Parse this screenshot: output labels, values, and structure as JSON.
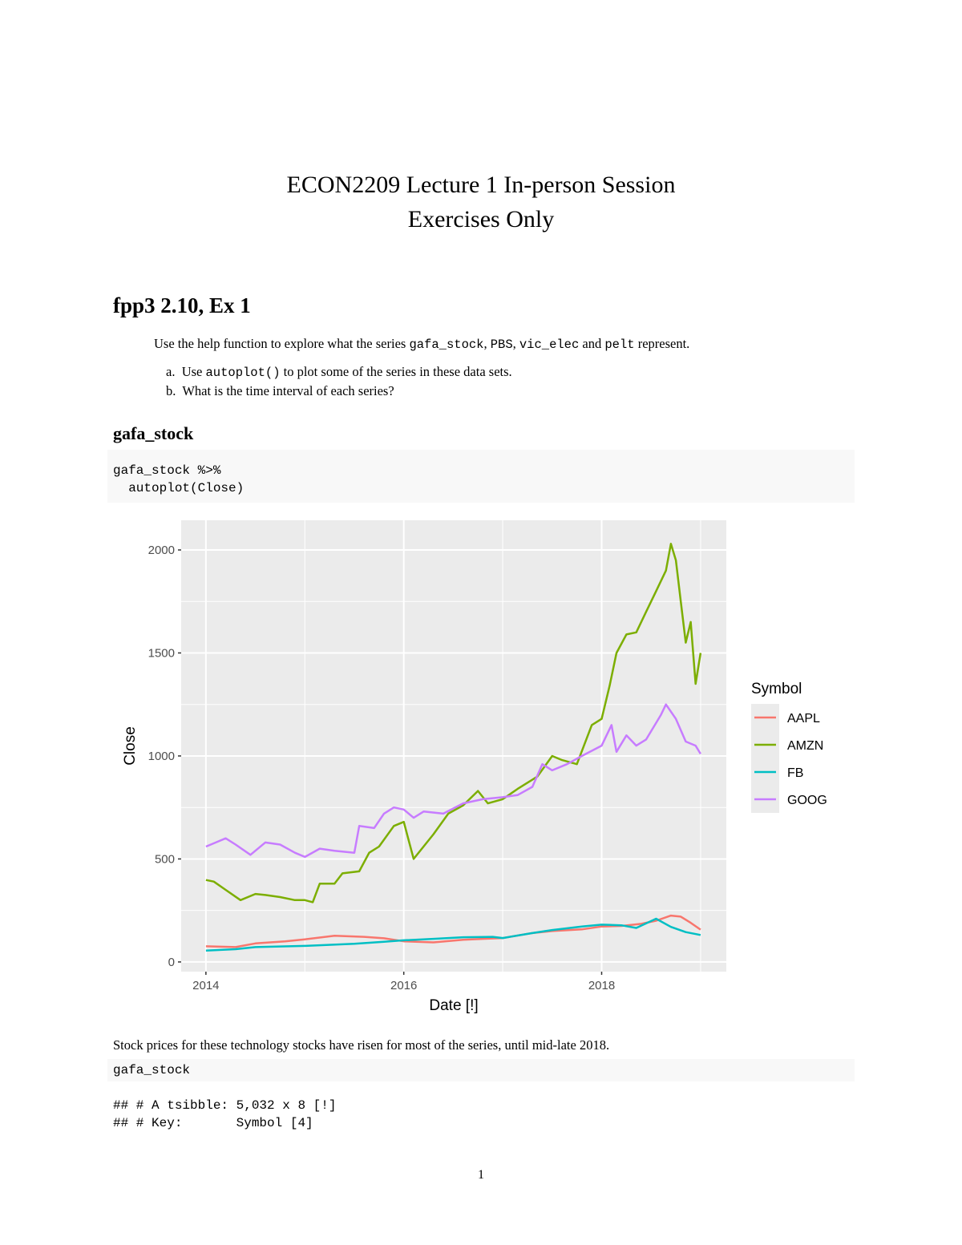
{
  "document": {
    "title_line1": "ECON2209 Lecture 1 In-person Session",
    "title_line2": "Exercises Only",
    "section_heading": "fpp3 2.10, Ex 1",
    "intro": {
      "before": "Use the help function to explore what the series ",
      "code1": "gafa_stock",
      "sep1": ", ",
      "code2": "PBS",
      "sep2": ", ",
      "code3": "vic_elec",
      "sep3": " and ",
      "code4": "pelt",
      "after": " represent."
    },
    "items": [
      {
        "marker": "a.",
        "before": "Use ",
        "code": "autoplot()",
        "after": " to plot some of the series in these data sets."
      },
      {
        "marker": "b.",
        "before": "What is the time interval of each series?",
        "code": "",
        "after": ""
      }
    ],
    "subheading": "gafa_stock",
    "code_block_1": "gafa_stock %>%\n  autoplot(Close)",
    "caption": "Stock prices for these technology stocks have risen for most of the series, until mid-late 2018.",
    "code_block_2": "gafa_stock",
    "output_lines": [
      "## # A tsibble: 5,032 x 8 [!]",
      "## # Key:       Symbol [4]"
    ],
    "page_number": "1"
  },
  "chart_data": {
    "type": "line",
    "title": "",
    "xlabel": "Date [!]",
    "ylabel": "Close",
    "xlim": [
      2013.75,
      2019.26
    ],
    "ylim": [
      -47,
      2144
    ],
    "x_ticks": [
      2014,
      2016,
      2018
    ],
    "x_tick_labels": [
      "2014",
      "2016",
      "2018"
    ],
    "y_ticks": [
      0,
      500,
      1000,
      1500,
      2000
    ],
    "y_tick_labels": [
      "0",
      "500",
      "1000",
      "1500",
      "2000"
    ],
    "grid": true,
    "legend": {
      "title": "Symbol",
      "placement": "right"
    },
    "series": [
      {
        "name": "AAPL",
        "color": "#F8766D",
        "x": [
          2014.0,
          2014.3,
          2014.5,
          2014.8,
          2015.0,
          2015.3,
          2015.6,
          2015.8,
          2016.0,
          2016.3,
          2016.6,
          2016.8,
          2017.0,
          2017.3,
          2017.5,
          2017.8,
          2018.0,
          2018.2,
          2018.4,
          2018.55,
          2018.7,
          2018.8,
          2018.9,
          2019.0
        ],
        "y": [
          76,
          72,
          90,
          100,
          110,
          127,
          122,
          115,
          100,
          95,
          108,
          112,
          116,
          140,
          150,
          158,
          172,
          175,
          185,
          200,
          225,
          220,
          190,
          157
        ]
      },
      {
        "name": "AMZN",
        "color": "#7CAE00",
        "x": [
          2014.0,
          2014.08,
          2014.2,
          2014.35,
          2014.5,
          2014.6,
          2014.75,
          2014.9,
          2015.0,
          2015.08,
          2015.15,
          2015.3,
          2015.38,
          2015.55,
          2015.65,
          2015.75,
          2015.9,
          2016.0,
          2016.05,
          2016.1,
          2016.3,
          2016.45,
          2016.6,
          2016.75,
          2016.85,
          2017.0,
          2017.15,
          2017.35,
          2017.5,
          2017.6,
          2017.75,
          2017.9,
          2018.0,
          2018.08,
          2018.15,
          2018.25,
          2018.35,
          2018.45,
          2018.55,
          2018.65,
          2018.7,
          2018.75,
          2018.8,
          2018.85,
          2018.9,
          2018.95,
          2019.0
        ],
        "y": [
          398,
          390,
          350,
          300,
          330,
          325,
          315,
          300,
          300,
          290,
          380,
          380,
          430,
          440,
          530,
          560,
          660,
          680,
          590,
          500,
          620,
          720,
          760,
          830,
          770,
          790,
          840,
          900,
          1000,
          980,
          960,
          1150,
          1180,
          1340,
          1500,
          1590,
          1600,
          1700,
          1800,
          1900,
          2030,
          1950,
          1750,
          1550,
          1650,
          1350,
          1500
        ]
      },
      {
        "name": "FB",
        "color": "#00BFC4",
        "x": [
          2014.0,
          2014.3,
          2014.5,
          2015.0,
          2015.5,
          2015.8,
          2016.0,
          2016.3,
          2016.6,
          2016.9,
          2017.0,
          2017.3,
          2017.5,
          2017.8,
          2018.0,
          2018.2,
          2018.35,
          2018.55,
          2018.7,
          2018.85,
          2019.0
        ],
        "y": [
          55,
          62,
          72,
          78,
          88,
          98,
          105,
          112,
          120,
          122,
          116,
          140,
          155,
          172,
          181,
          178,
          165,
          210,
          170,
          145,
          131
        ]
      },
      {
        "name": "GOOG",
        "color": "#C77CFF",
        "x": [
          2014.0,
          2014.1,
          2014.2,
          2014.3,
          2014.45,
          2014.6,
          2014.75,
          2014.9,
          2015.0,
          2015.15,
          2015.3,
          2015.5,
          2015.55,
          2015.7,
          2015.8,
          2015.9,
          2016.0,
          2016.1,
          2016.2,
          2016.4,
          2016.6,
          2016.8,
          2017.0,
          2017.15,
          2017.3,
          2017.4,
          2017.5,
          2017.65,
          2017.8,
          2018.0,
          2018.1,
          2018.15,
          2018.25,
          2018.35,
          2018.45,
          2018.6,
          2018.65,
          2018.75,
          2018.85,
          2018.95,
          2019.0
        ],
        "y": [
          560,
          580,
          600,
          570,
          520,
          580,
          570,
          530,
          510,
          550,
          540,
          530,
          660,
          650,
          720,
          750,
          740,
          700,
          730,
          720,
          770,
          790,
          800,
          810,
          850,
          960,
          930,
          960,
          1000,
          1050,
          1150,
          1020,
          1100,
          1050,
          1080,
          1200,
          1250,
          1180,
          1070,
          1050,
          1010
        ]
      }
    ]
  }
}
